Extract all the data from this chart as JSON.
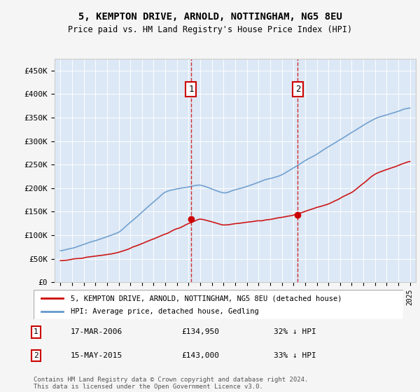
{
  "title1": "5, KEMPTON DRIVE, ARNOLD, NOTTINGHAM, NG5 8EU",
  "title2": "Price paid vs. HM Land Registry's House Price Index (HPI)",
  "xlabel": "",
  "ylabel": "",
  "ylim": [
    0,
    475000
  ],
  "yticks": [
    0,
    50000,
    100000,
    150000,
    200000,
    250000,
    300000,
    350000,
    400000,
    450000
  ],
  "ytick_labels": [
    "£0",
    "£50K",
    "£100K",
    "£150K",
    "£200K",
    "£250K",
    "£300K",
    "£350K",
    "£400K",
    "£450K"
  ],
  "background_color": "#e8f0f8",
  "plot_bg_color": "#dce8f5",
  "red_line_color": "#cc0000",
  "blue_line_color": "#6699cc",
  "marker1_date_idx": 11.25,
  "marker2_date_idx": 20.4,
  "marker1_value": 134950,
  "marker2_value": 143000,
  "transaction1_date": "17-MAR-2006",
  "transaction1_price": "£134,950",
  "transaction1_hpi": "32% ↓ HPI",
  "transaction2_date": "15-MAY-2015",
  "transaction2_price": "£143,000",
  "transaction2_hpi": "33% ↓ HPI",
  "legend_red": "5, KEMPTON DRIVE, ARNOLD, NOTTINGHAM, NG5 8EU (detached house)",
  "legend_blue": "HPI: Average price, detached house, Gedling",
  "footer": "Contains HM Land Registry data © Crown copyright and database right 2024.\nThis data is licensed under the Open Government Licence v3.0.",
  "x_start_year": 1995,
  "x_end_year": 2025
}
